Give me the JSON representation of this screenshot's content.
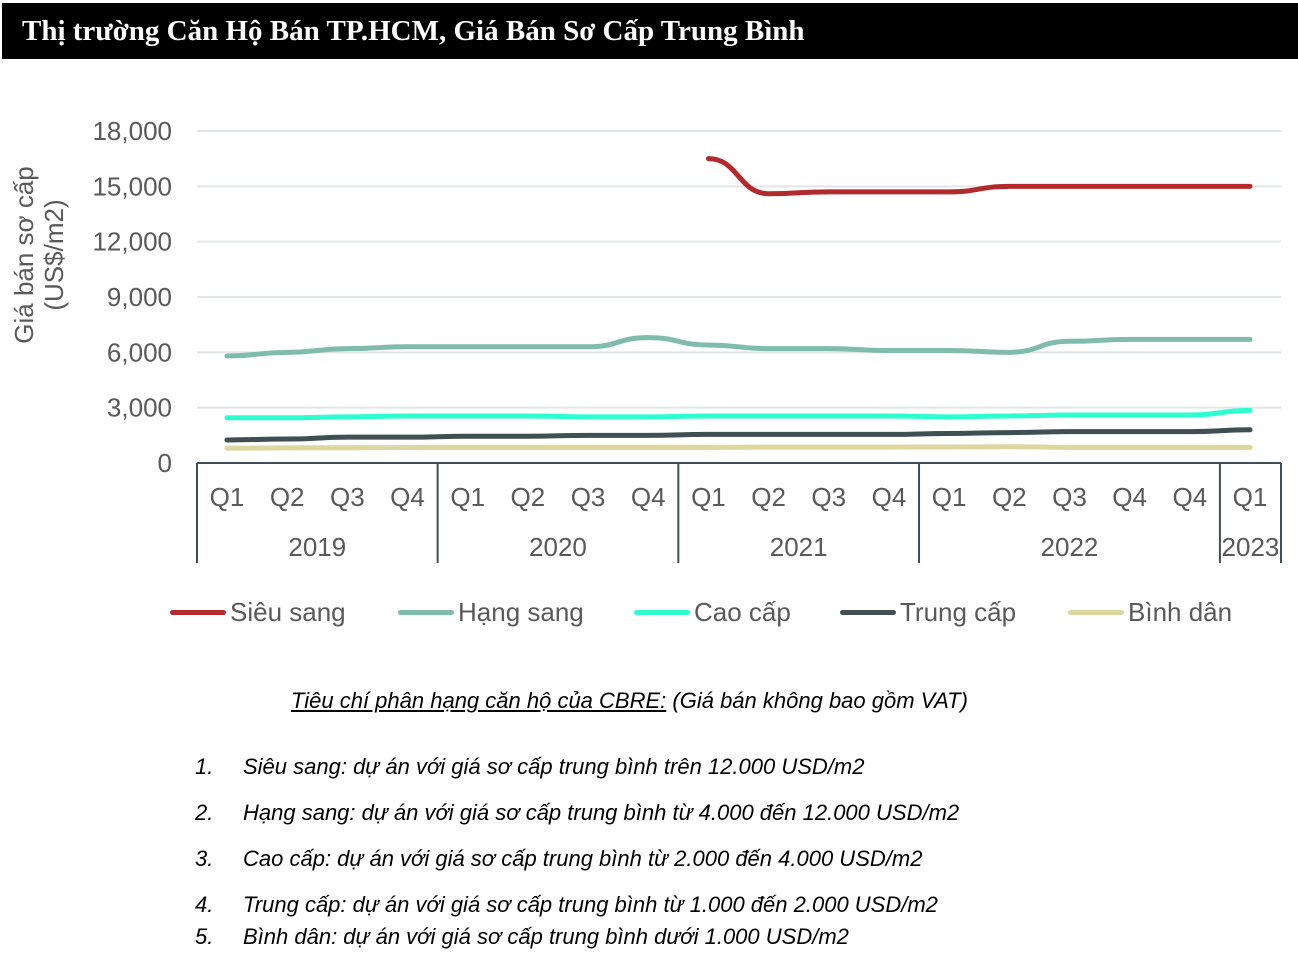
{
  "title": "Thị trường Căn Hộ Bán TP.HCM, Giá Bán Sơ Cấp Trung Bình",
  "chart_data": {
    "type": "line",
    "ylabel": "Giá bán sơ cấp (US$/m2)",
    "ylabel_lines": [
      "Giá bán sơ cấp",
      "(US$/m2)"
    ],
    "ylim": [
      0,
      18000
    ],
    "yticks": [
      "0",
      "3,000",
      "6,000",
      "9,000",
      "12,000",
      "15,000",
      "18,000"
    ],
    "ytick_values": [
      0,
      3000,
      6000,
      9000,
      12000,
      15000,
      18000
    ],
    "grid": true,
    "legend_placement": "bottom",
    "categories": [
      "Q1",
      "Q2",
      "Q3",
      "Q4",
      "Q1",
      "Q2",
      "Q3",
      "Q4",
      "Q1",
      "Q2",
      "Q3",
      "Q4",
      "Q1",
      "Q2",
      "Q3",
      "Q4",
      "Q4",
      "Q1"
    ],
    "year_groups": [
      {
        "label": "2019",
        "count": 4
      },
      {
        "label": "2020",
        "count": 4
      },
      {
        "label": "2021",
        "count": 4
      },
      {
        "label": "2022",
        "count": 5
      },
      {
        "label": "2023",
        "count": 1
      }
    ],
    "series": [
      {
        "name": "Siêu sang",
        "color": "#b22a2e",
        "values": [
          null,
          null,
          null,
          null,
          null,
          null,
          null,
          null,
          16500,
          14600,
          14700,
          14700,
          14700,
          15000,
          15000,
          15000,
          15000,
          15000
        ]
      },
      {
        "name": "Hạng sang",
        "color": "#80bcab",
        "values": [
          5800,
          6000,
          6200,
          6300,
          6300,
          6300,
          6300,
          6800,
          6400,
          6200,
          6200,
          6100,
          6100,
          6000,
          6600,
          6700,
          6700,
          6700
        ]
      },
      {
        "name": "Cao cấp",
        "color": "#2effd0",
        "values": [
          2450,
          2450,
          2500,
          2550,
          2550,
          2550,
          2500,
          2500,
          2550,
          2550,
          2550,
          2550,
          2500,
          2550,
          2600,
          2600,
          2600,
          2850
        ]
      },
      {
        "name": "Trung cấp",
        "color": "#3f4f52",
        "values": [
          1250,
          1300,
          1400,
          1400,
          1450,
          1450,
          1500,
          1500,
          1550,
          1550,
          1550,
          1550,
          1600,
          1650,
          1700,
          1700,
          1700,
          1800
        ]
      },
      {
        "name": "Bình dân",
        "color": "#ddd6a0",
        "values": [
          800,
          820,
          830,
          840,
          850,
          850,
          850,
          850,
          850,
          860,
          860,
          860,
          870,
          880,
          850,
          850,
          850,
          850
        ]
      }
    ]
  },
  "criteria": {
    "heading": "Tiêu chí phân hạng căn hộ của CBRE:",
    "note": " (Giá bán không bao gồm VAT)",
    "items": [
      {
        "num": "1.",
        "text": "Siêu sang: dự án với giá sơ cấp trung bình trên 12.000 USD/m2"
      },
      {
        "num": "2.",
        "text": "Hạng sang: dự án với giá sơ cấp trung bình từ 4.000 đến 12.000 USD/m2"
      },
      {
        "num": "3.",
        "text": "Cao cấp: dự án với giá sơ cấp trung bình từ 2.000 đến 4.000 USD/m2"
      },
      {
        "num": "4.",
        "text": "Trung cấp: dự án với giá sơ cấp trung bình từ 1.000 đến 2.000 USD/m2"
      },
      {
        "num": "5.",
        "text": "Bình dân: dự án với giá sơ cấp trung bình dưới 1.000 USD/m2"
      }
    ]
  }
}
